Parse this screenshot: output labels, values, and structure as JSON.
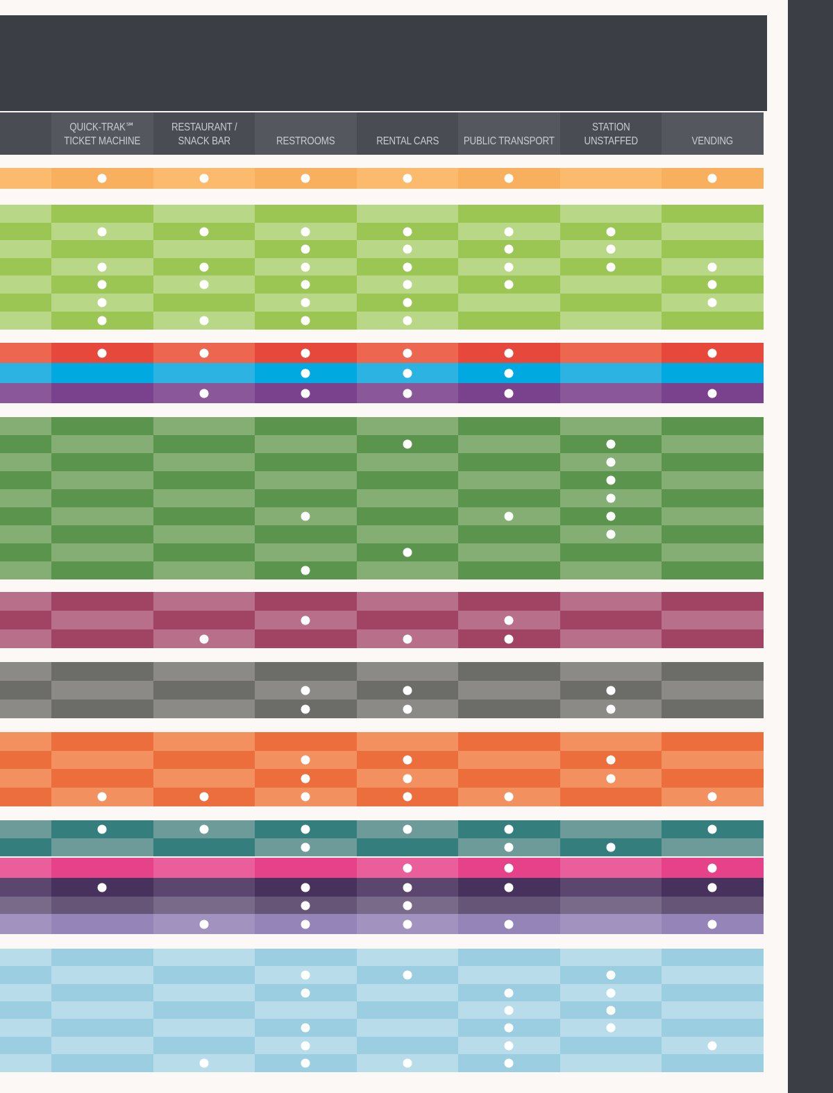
{
  "columns": [
    {
      "id": "quick-trak",
      "lines": [
        "QUICK-TRAK℠",
        "TICKET MACHINE"
      ]
    },
    {
      "id": "restaurant",
      "lines": [
        "RESTAURANT /",
        "SNACK BAR"
      ]
    },
    {
      "id": "restrooms",
      "lines": [
        "RESTROOMS"
      ]
    },
    {
      "id": "rental-cars",
      "lines": [
        "RENTAL CARS"
      ]
    },
    {
      "id": "public-transport",
      "lines": [
        "PUBLIC TRANSPORT"
      ]
    },
    {
      "id": "station-unstaffed",
      "lines": [
        "STATION",
        "UNSTAFFED"
      ]
    },
    {
      "id": "vending",
      "lines": [
        "VENDING"
      ]
    }
  ],
  "colors": {
    "header_dark": "#3c3e45",
    "header_row": "#4a4c53",
    "header_row_alt": "#55575e",
    "page_background": "#fbf8f5"
  },
  "groups": [
    {
      "name": "orange",
      "base": "#f9b05e",
      "alt": "#fbba6c",
      "rows": [
        [
          1,
          1,
          1,
          1,
          1,
          0,
          1
        ]
      ]
    },
    {
      "name": "lime",
      "base": "#9bc653",
      "alt": "#b8d888",
      "rows": [
        [
          0,
          0,
          0,
          0,
          0,
          0,
          0
        ],
        [
          1,
          1,
          1,
          1,
          1,
          1,
          0
        ],
        [
          0,
          0,
          1,
          1,
          1,
          1,
          0
        ],
        [
          1,
          1,
          1,
          1,
          1,
          1,
          1
        ],
        [
          1,
          1,
          1,
          1,
          1,
          0,
          1
        ],
        [
          1,
          0,
          1,
          1,
          0,
          0,
          1
        ],
        [
          1,
          1,
          1,
          1,
          0,
          0,
          0
        ]
      ]
    },
    {
      "name": "red",
      "base": "#e6493b",
      "alt": "#ec6650",
      "rows": [
        [
          1,
          1,
          1,
          1,
          1,
          0,
          1
        ]
      ]
    },
    {
      "name": "blue",
      "base": "#00a9df",
      "alt": "#2db3e2",
      "rows": [
        [
          0,
          0,
          1,
          1,
          1,
          0,
          0
        ]
      ]
    },
    {
      "name": "purple",
      "base": "#7a418c",
      "alt": "#8a5899",
      "rows": [
        [
          0,
          1,
          1,
          1,
          1,
          0,
          1
        ]
      ]
    },
    {
      "name": "green",
      "base": "#5b954d",
      "alt": "#84ae74",
      "rows": [
        [
          0,
          0,
          0,
          0,
          0,
          0,
          0
        ],
        [
          0,
          0,
          0,
          1,
          0,
          1,
          0
        ],
        [
          0,
          0,
          0,
          0,
          0,
          1,
          0
        ],
        [
          0,
          0,
          0,
          0,
          0,
          1,
          0
        ],
        [
          0,
          0,
          0,
          0,
          0,
          1,
          0
        ],
        [
          0,
          0,
          1,
          0,
          1,
          1,
          0
        ],
        [
          0,
          0,
          0,
          0,
          0,
          1,
          0
        ],
        [
          0,
          0,
          0,
          1,
          0,
          0,
          0
        ],
        [
          0,
          0,
          1,
          0,
          0,
          0,
          0
        ]
      ]
    },
    {
      "name": "plum",
      "base": "#a14464",
      "alt": "#b8708a",
      "rows": [
        [
          0,
          0,
          0,
          0,
          0,
          0,
          0
        ],
        [
          0,
          0,
          1,
          0,
          1,
          0,
          0
        ],
        [
          0,
          1,
          0,
          1,
          1,
          0,
          0
        ]
      ]
    },
    {
      "name": "gray",
      "base": "#6c6d69",
      "alt": "#8b8a86",
      "rows": [
        [
          0,
          0,
          0,
          0,
          0,
          0,
          0
        ],
        [
          0,
          0,
          1,
          1,
          0,
          1,
          0
        ],
        [
          0,
          0,
          1,
          1,
          0,
          1,
          0
        ]
      ]
    },
    {
      "name": "tangerine",
      "base": "#ec6e3c",
      "alt": "#f29060",
      "rows": [
        [
          0,
          0,
          0,
          0,
          0,
          0,
          0
        ],
        [
          0,
          0,
          1,
          1,
          0,
          1,
          0
        ],
        [
          0,
          0,
          1,
          1,
          0,
          1,
          0
        ],
        [
          1,
          1,
          1,
          1,
          1,
          0,
          1
        ]
      ]
    },
    {
      "name": "teal",
      "base": "#357e7e",
      "alt": "#6c9b9a",
      "rows": [
        [
          1,
          1,
          1,
          1,
          1,
          0,
          1
        ],
        [
          0,
          0,
          1,
          0,
          1,
          1,
          0
        ]
      ]
    },
    {
      "name": "pink",
      "base": "#e54289",
      "alt": "#ea5e9c",
      "rows": [
        [
          0,
          0,
          0,
          1,
          1,
          0,
          1
        ]
      ]
    },
    {
      "name": "indigo",
      "base": "#46325c",
      "alt": "#5a466e",
      "rows": [
        [
          1,
          0,
          1,
          1,
          1,
          0,
          1
        ]
      ]
    },
    {
      "name": "mauve",
      "base": "#665577",
      "alt": "#7a6a8a",
      "rows": [
        [
          0,
          0,
          1,
          1,
          0,
          0,
          0
        ]
      ]
    },
    {
      "name": "lavender",
      "base": "#9584b8",
      "alt": "#a192c0",
      "rows": [
        [
          0,
          1,
          1,
          1,
          1,
          0,
          1
        ]
      ]
    },
    {
      "name": "sky",
      "base": "#9acee0",
      "alt": "#b8dcea",
      "rows": [
        [
          0,
          0,
          0,
          0,
          0,
          0,
          0
        ],
        [
          0,
          0,
          1,
          1,
          0,
          1,
          0
        ],
        [
          0,
          0,
          1,
          0,
          1,
          1,
          0
        ],
        [
          0,
          0,
          0,
          0,
          1,
          1,
          0
        ],
        [
          0,
          0,
          1,
          0,
          1,
          1,
          0
        ],
        [
          0,
          0,
          1,
          0,
          1,
          0,
          1
        ],
        [
          0,
          1,
          1,
          1,
          1,
          0,
          0
        ]
      ]
    }
  ]
}
